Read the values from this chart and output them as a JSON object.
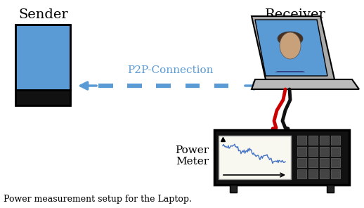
{
  "caption": "Power measurement setup for the Laptop.",
  "sender_label": "Sender",
  "receiver_label": "Receiver",
  "connection_label": "P2P-Connection",
  "power_meter_label_line1": "Power",
  "power_meter_label_line2": "Meter",
  "bg_color": "#ffffff",
  "arrow_color": "#5b9bd5",
  "phone_body_color": "#5b9bd5",
  "phone_bottom_color": "#111111",
  "laptop_screen_color": "#5b9bd5",
  "laptop_frame_color": "#aaaaaa",
  "laptop_base_color": "#bbbbbb",
  "meter_body_color": "#111111",
  "meter_display_color": "#f8f8f0",
  "meter_plot_color": "#4472c4",
  "wire_red_color": "#cc0000",
  "wire_black_color": "#111111",
  "figsize": [
    5.18,
    2.96
  ],
  "dpi": 100
}
